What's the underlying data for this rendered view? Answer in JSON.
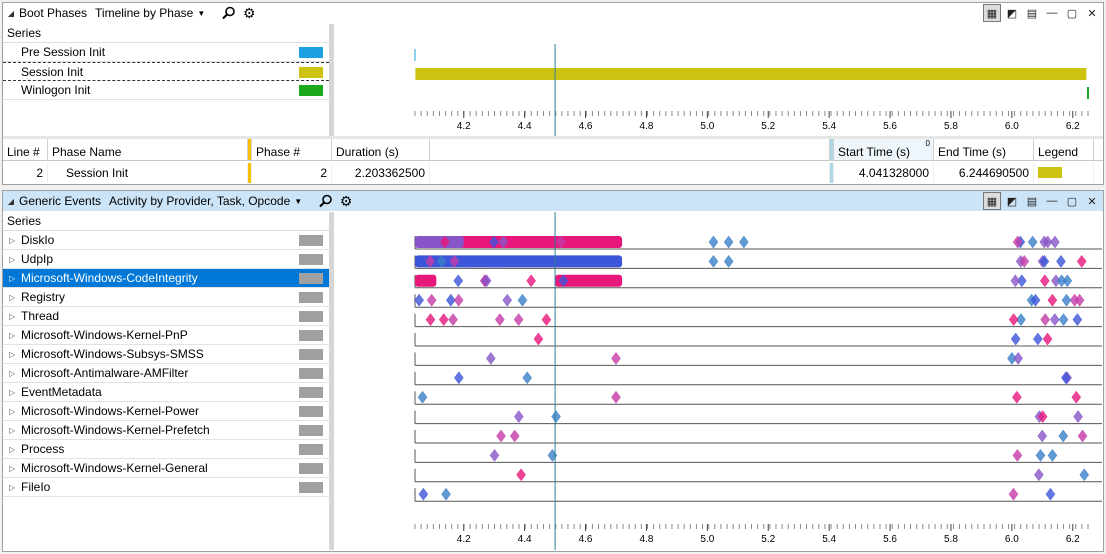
{
  "boot": {
    "title": "Boot Phases",
    "view": "Timeline by Phase",
    "series_header": "Series",
    "series": [
      {
        "label": "Pre Session Init",
        "color": "#1ba1e2"
      },
      {
        "label": "Session Init",
        "color": "#cdc20f"
      },
      {
        "label": "Winlogon Init",
        "color": "#1aa91a"
      }
    ],
    "bar": {
      "start": 4.041328,
      "end": 6.24469
    }
  },
  "axis": {
    "min": 4.04,
    "max": 6.25,
    "ticks": [
      "4.2",
      "4.4",
      "4.6",
      "4.8",
      "5.0",
      "5.2",
      "5.4",
      "5.6",
      "5.8",
      "6.0",
      "6.2"
    ],
    "cursor": 4.5
  },
  "table": {
    "headers": {
      "line": "Line #",
      "phase": "Phase Name",
      "phase_num": "Phase #",
      "duration": "Duration (s)",
      "start": "Start Time (s)",
      "end": "End Time (s)",
      "legend": "Legend"
    },
    "row": {
      "line": "2",
      "phase": "Session Init",
      "phase_num": "2",
      "duration": "2.203362500",
      "start": "4.041328000",
      "end": "6.244690500",
      "legend_color": "#cdc20f"
    },
    "sort_marker": "0"
  },
  "generic": {
    "title": "Generic Events",
    "view": "Activity by Provider, Task, Opcode",
    "series_header": "Series",
    "selected": 2,
    "series": [
      {
        "label": "DiskIo"
      },
      {
        "label": "UdpIp"
      },
      {
        "label": "Microsoft-Windows-CodeIntegrity"
      },
      {
        "label": "Registry"
      },
      {
        "label": "Thread"
      },
      {
        "label": "Microsoft-Windows-Kernel-PnP"
      },
      {
        "label": "Microsoft-Windows-Subsys-SMSS"
      },
      {
        "label": "Microsoft-Antimalware-AMFilter"
      },
      {
        "label": "EventMetadata"
      },
      {
        "label": "Microsoft-Windows-Kernel-Power"
      },
      {
        "label": "Microsoft-Windows-Kernel-Prefetch"
      },
      {
        "label": "Process"
      },
      {
        "label": "Microsoft-Windows-Kernel-General"
      },
      {
        "label": "FileIo"
      }
    ],
    "swatch_color": "#a0a0a0",
    "band_colors": [
      "#e8177c",
      "#3d55d9",
      "#8855c8",
      "#3a7fc8",
      "#c43ca8"
    ]
  }
}
